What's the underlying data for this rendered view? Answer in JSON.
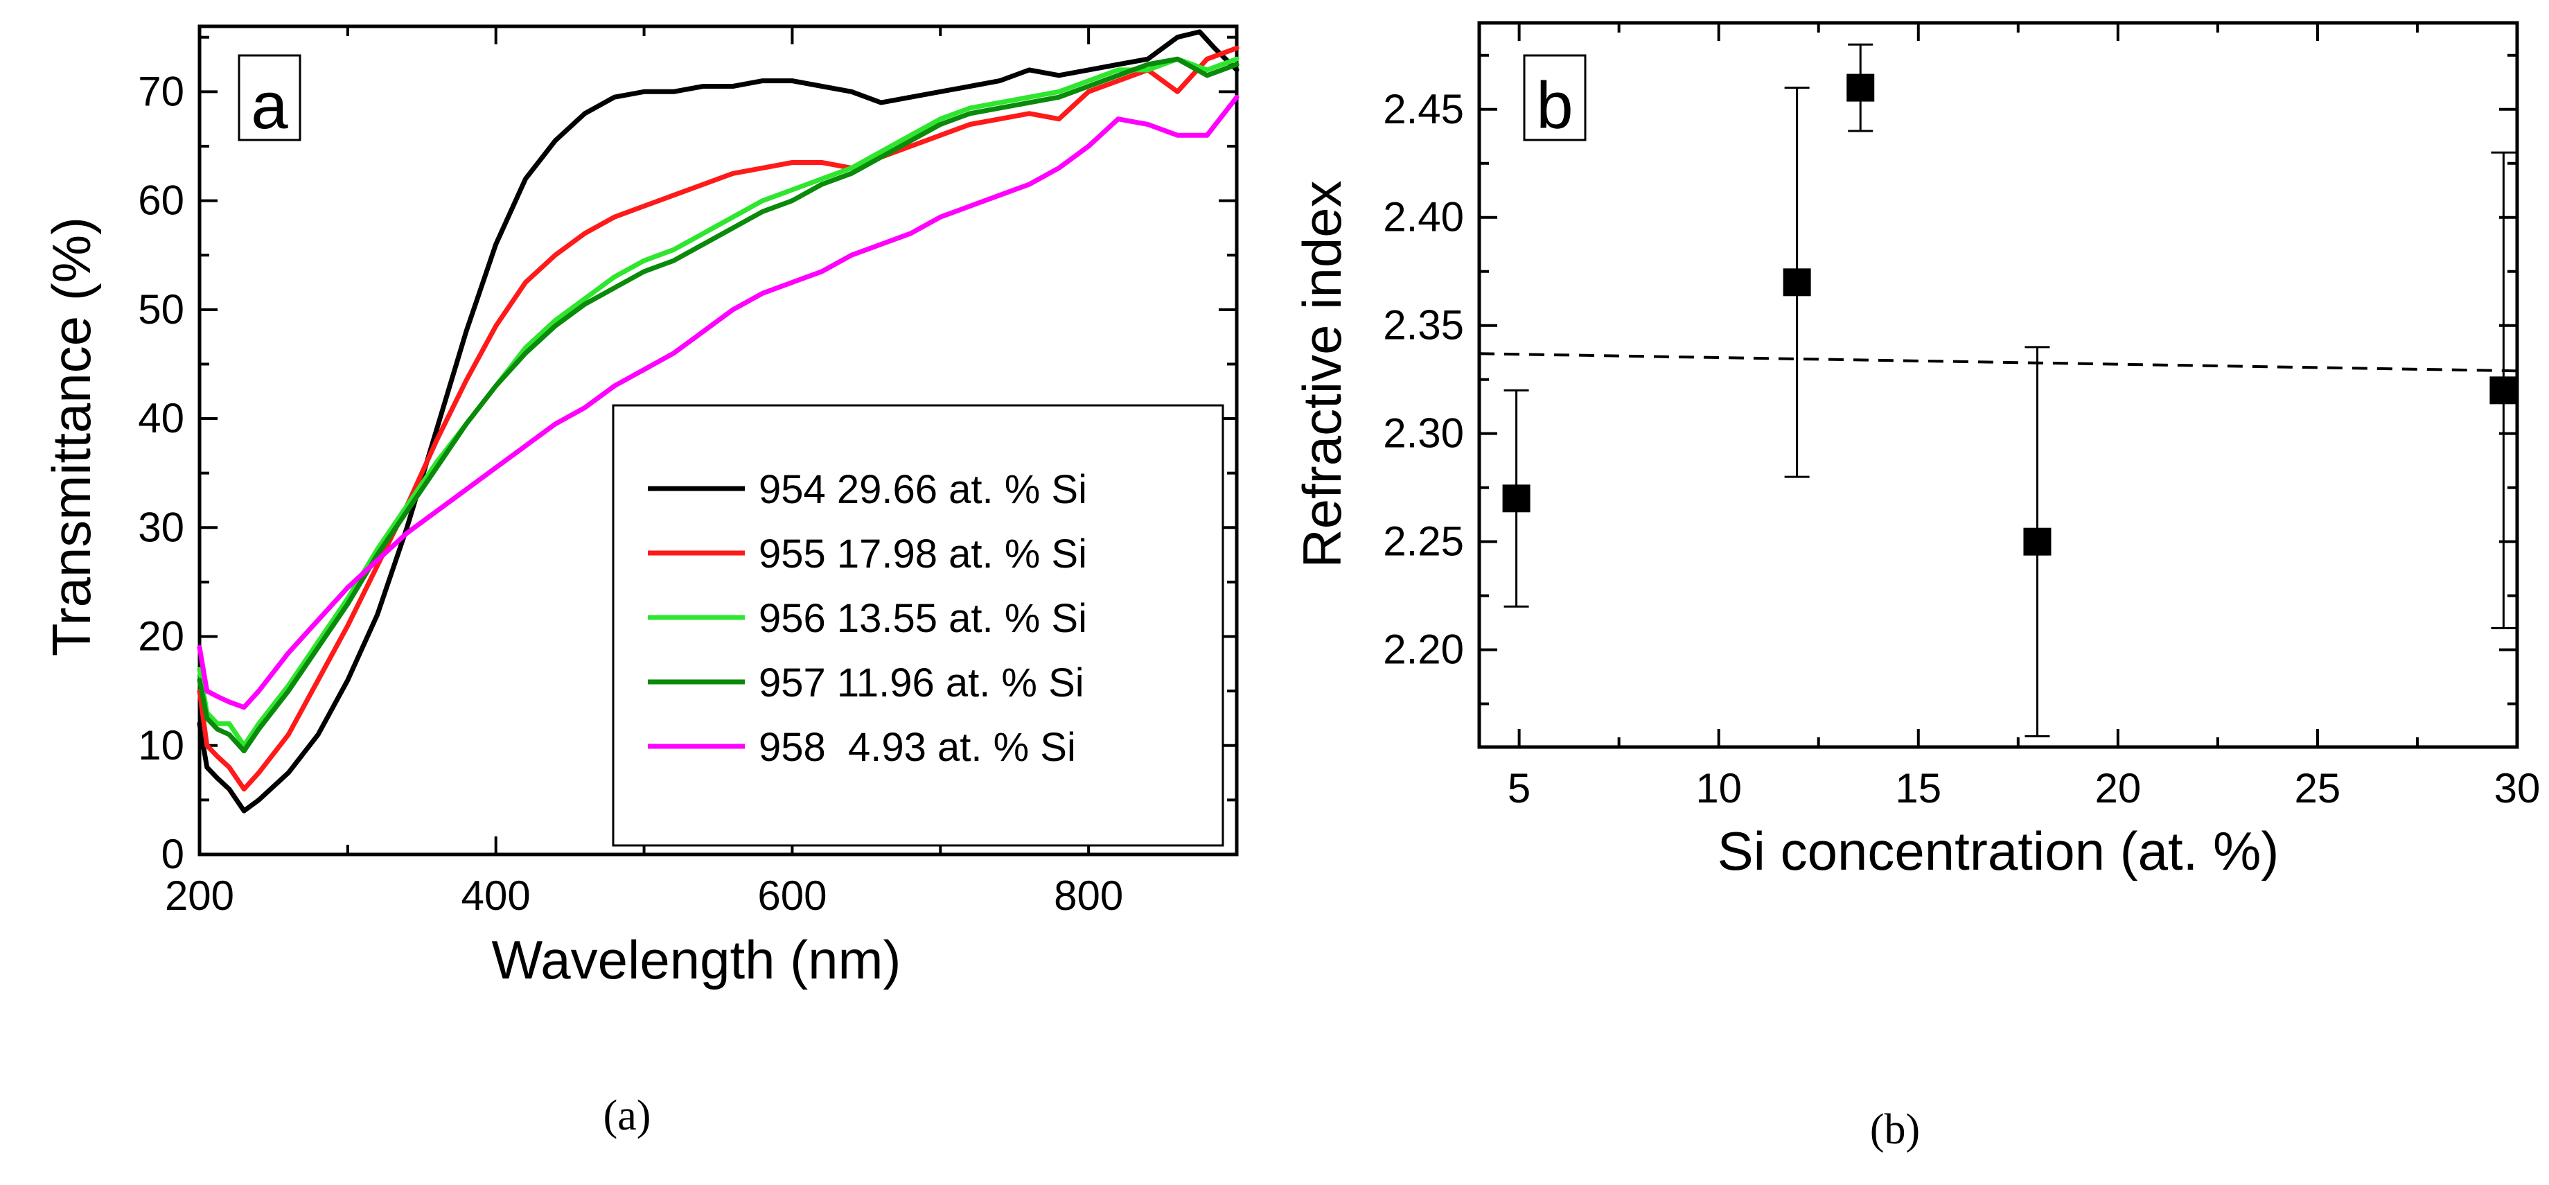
{
  "chart_data": [
    {
      "type": "line",
      "panel_label": "a",
      "caption": "(a)",
      "xlabel": "Wavelength (nm)",
      "ylabel": "Transmittance (%)",
      "xlim": [
        200,
        900
      ],
      "ylim": [
        0,
        76
      ],
      "xticks": [
        200,
        400,
        600,
        800
      ],
      "yticks": [
        0,
        10,
        20,
        30,
        40,
        50,
        60,
        70
      ],
      "legend_position": "right-middle",
      "series": [
        {
          "name": "954 29.66 at. % Si",
          "color": "#000000",
          "x": [
            200,
            205,
            212,
            220,
            230,
            240,
            260,
            280,
            300,
            320,
            340,
            360,
            380,
            400,
            420,
            440,
            460,
            480,
            500,
            520,
            540,
            560,
            580,
            600,
            620,
            640,
            660,
            680,
            700,
            720,
            740,
            760,
            780,
            800,
            820,
            840,
            860,
            875,
            885,
            900
          ],
          "y": [
            12,
            8,
            7,
            6,
            4,
            5,
            7.5,
            11,
            16,
            22,
            30,
            39,
            48,
            56,
            62,
            65.5,
            68,
            69.5,
            70,
            70,
            70.5,
            70.5,
            71,
            71,
            70.5,
            70,
            69,
            69.5,
            70,
            70.5,
            71,
            72,
            71.5,
            72,
            72.5,
            73,
            75,
            75.5,
            74,
            72
          ]
        },
        {
          "name": "955 17.98 at. % Si",
          "color": "#ff1a1a",
          "x": [
            200,
            205,
            212,
            220,
            230,
            240,
            260,
            280,
            300,
            320,
            340,
            360,
            380,
            400,
            420,
            440,
            460,
            480,
            500,
            520,
            540,
            560,
            580,
            600,
            620,
            640,
            660,
            680,
            700,
            720,
            740,
            760,
            780,
            800,
            820,
            840,
            860,
            880,
            900
          ],
          "y": [
            15,
            10,
            9,
            8,
            6,
            7.5,
            11,
            16,
            21,
            26.5,
            32,
            38,
            43.5,
            48.5,
            52.5,
            55,
            57,
            58.5,
            59.5,
            60.5,
            61.5,
            62.5,
            63,
            63.5,
            63.5,
            63,
            64,
            65,
            66,
            67,
            67.5,
            68,
            67.5,
            70,
            71,
            72,
            70,
            73,
            74
          ]
        },
        {
          "name": "956 13.55 at. % Si",
          "color": "#2ee62e",
          "x": [
            200,
            205,
            212,
            220,
            230,
            240,
            260,
            280,
            300,
            320,
            340,
            360,
            380,
            400,
            420,
            440,
            460,
            480,
            500,
            520,
            540,
            560,
            580,
            600,
            620,
            640,
            660,
            680,
            700,
            720,
            740,
            760,
            780,
            800,
            820,
            840,
            860,
            880,
            900
          ],
          "y": [
            17,
            13,
            12,
            12,
            10,
            12,
            15.5,
            19.5,
            23.5,
            28,
            32,
            36,
            39.5,
            43,
            46.5,
            49,
            51,
            53,
            54.5,
            55.5,
            57,
            58.5,
            60,
            61,
            62,
            63,
            64.5,
            66,
            67.5,
            68.5,
            69,
            69.5,
            70,
            71,
            72,
            72,
            73,
            72,
            73
          ]
        },
        {
          "name": "957 11.96 at. % Si",
          "color": "#0a8a0a",
          "x": [
            200,
            205,
            212,
            220,
            230,
            240,
            260,
            280,
            300,
            320,
            340,
            360,
            380,
            400,
            420,
            440,
            460,
            480,
            500,
            520,
            540,
            560,
            580,
            600,
            620,
            640,
            660,
            680,
            700,
            720,
            740,
            760,
            780,
            800,
            820,
            840,
            860,
            880,
            900
          ],
          "y": [
            16,
            12.5,
            11.5,
            11,
            9.5,
            11.5,
            15,
            19,
            23,
            27.5,
            31.5,
            35.5,
            39.5,
            43,
            46,
            48.5,
            50.5,
            52,
            53.5,
            54.5,
            56,
            57.5,
            59,
            60,
            61.5,
            62.5,
            64,
            65.5,
            67,
            68,
            68.5,
            69,
            69.5,
            70.5,
            71.5,
            72.5,
            73,
            71.5,
            72.5
          ]
        },
        {
          "name": "958  4.93 at. % Si",
          "color": "#ff00ff",
          "x": [
            200,
            205,
            212,
            220,
            230,
            240,
            260,
            280,
            300,
            320,
            340,
            360,
            380,
            400,
            420,
            440,
            460,
            480,
            500,
            520,
            540,
            560,
            580,
            600,
            620,
            640,
            660,
            680,
            700,
            720,
            740,
            760,
            780,
            800,
            820,
            840,
            860,
            880,
            900
          ],
          "y": [
            19,
            15,
            14.5,
            14,
            13.5,
            15,
            18.5,
            21.5,
            24.5,
            27,
            29.5,
            31.5,
            33.5,
            35.5,
            37.5,
            39.5,
            41,
            43,
            44.5,
            46,
            48,
            50,
            51.5,
            52.5,
            53.5,
            55,
            56,
            57,
            58.5,
            59.5,
            60.5,
            61.5,
            63,
            65,
            67.5,
            67,
            66,
            66,
            69.5
          ]
        }
      ]
    },
    {
      "type": "scatter",
      "panel_label": "b",
      "caption": "(b)",
      "xlabel": "Si concentration (at. %)",
      "ylabel": "Refractive index",
      "xlim": [
        4,
        30
      ],
      "ylim": [
        2.155,
        2.49
      ],
      "xticks": [
        5,
        10,
        15,
        20,
        25,
        30
      ],
      "xtick_labels": [
        "5",
        "10",
        "15",
        "20",
        "25",
        "30"
      ],
      "yticks": [
        2.2,
        2.25,
        2.3,
        2.35,
        2.4,
        2.45
      ],
      "ytick_labels": [
        "2.20",
        "2.25",
        "2.30",
        "2.35",
        "2.40",
        "2.45"
      ],
      "points": [
        {
          "x": 4.93,
          "y": 2.27,
          "err_low": 2.22,
          "err_high": 2.32
        },
        {
          "x": 11.96,
          "y": 2.37,
          "err_low": 2.28,
          "err_high": 2.46
        },
        {
          "x": 13.55,
          "y": 2.46,
          "err_low": 2.44,
          "err_high": 2.48
        },
        {
          "x": 17.98,
          "y": 2.25,
          "err_low": 2.16,
          "err_high": 2.34
        },
        {
          "x": 29.66,
          "y": 2.32,
          "err_low": 2.21,
          "err_high": 2.43
        }
      ],
      "trend_line": {
        "style": "dashed",
        "x": [
          4,
          30
        ],
        "y": [
          2.337,
          2.329
        ]
      }
    }
  ]
}
